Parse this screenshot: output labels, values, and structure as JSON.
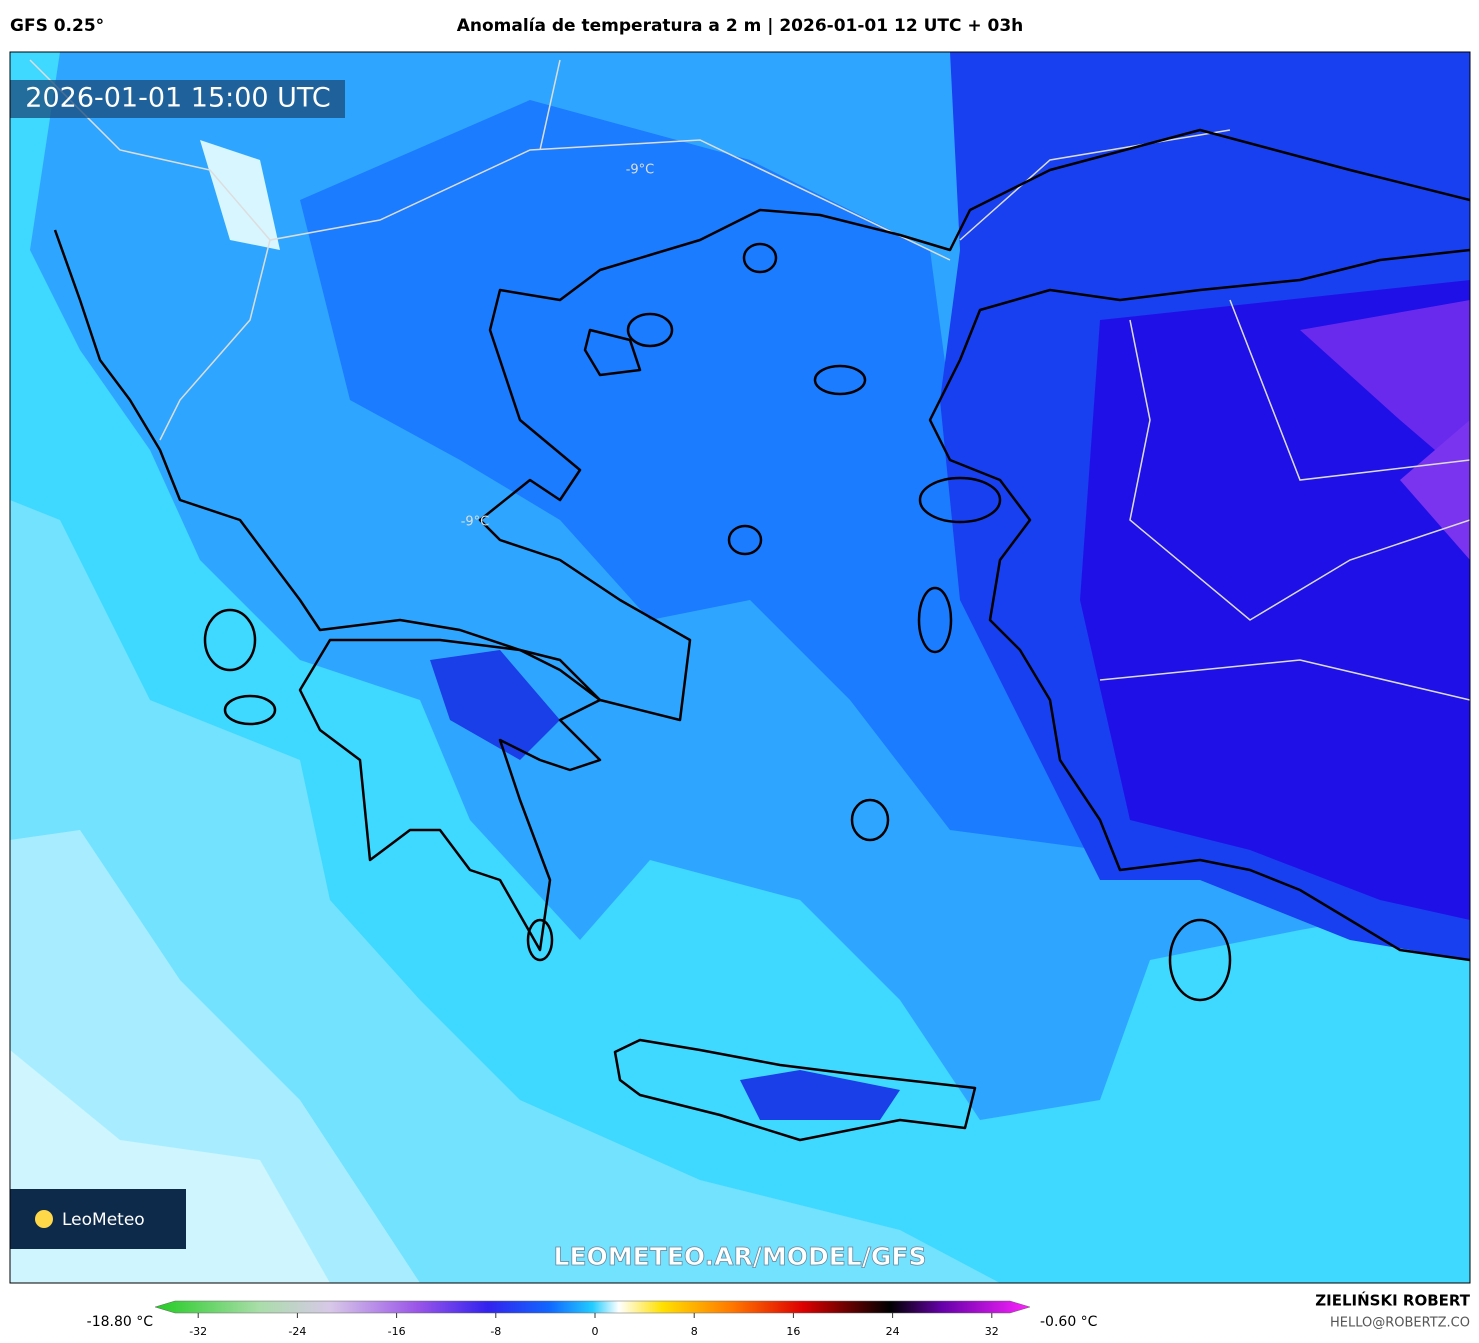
{
  "header": {
    "model": "GFS 0.25°",
    "title": "Anomalía de temperatura a 2 m | 2026-01-01 12 UTC + 03h"
  },
  "map": {
    "valid_time": "2026-01-01 15:00 UTC",
    "labels": [
      "-9°C",
      "-9°C"
    ],
    "watermark": "LEOMETEO.AR/MODEL/GFS",
    "logo": "LeoMeteo"
  },
  "colorbar": {
    "min_label": "-18.80 °C",
    "max_label": "-0.60 °C",
    "ticks": [
      -32,
      -24,
      -16,
      -8,
      0,
      8,
      16,
      24,
      32
    ]
  },
  "footer": {
    "author": "ZIELIŃSKI ROBERT",
    "contact": "HELLO@ROBERTZ.CO"
  }
}
